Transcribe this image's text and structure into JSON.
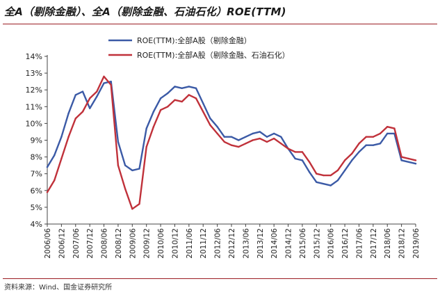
{
  "title": "全A（剔除金融）、全A（剔除金融、石油石化）ROE(TTM)",
  "source": "资料来源：Wind、国金证券研究所",
  "colors": {
    "series1": "#3b5aa6",
    "series2": "#c0313a",
    "accent": "#9b1c22"
  },
  "chart_data": {
    "type": "line",
    "title": "全A（剔除金融）、全A（剔除金融、石油石化）ROE(TTM)",
    "xlabel": "",
    "ylabel": "",
    "ylim": [
      4,
      14
    ],
    "yticks": [
      "4%",
      "5%",
      "6%",
      "7%",
      "8%",
      "9%",
      "10%",
      "11%",
      "12%",
      "13%",
      "14%"
    ],
    "y_unit": "%",
    "grid": false,
    "legend_position": "top",
    "x_tick_labels": [
      "2006/06",
      "2006/12",
      "2007/06",
      "2007/12",
      "2008/06",
      "2008/12",
      "2009/06",
      "2009/12",
      "2010/06",
      "2010/12",
      "2011/06",
      "2011/12",
      "2012/06",
      "2012/12",
      "2013/06",
      "2013/12",
      "2014/06",
      "2014/12",
      "2015/06",
      "2015/12",
      "2016/06",
      "2016/12",
      "2017/06",
      "2017/12",
      "2018/06",
      "2018/12",
      "2019/06"
    ],
    "x": [
      "2006/06",
      "2006/09",
      "2006/12",
      "2007/03",
      "2007/06",
      "2007/09",
      "2007/12",
      "2008/03",
      "2008/06",
      "2008/09",
      "2008/12",
      "2009/03",
      "2009/06",
      "2009/09",
      "2009/12",
      "2010/03",
      "2010/06",
      "2010/09",
      "2010/12",
      "2011/03",
      "2011/06",
      "2011/09",
      "2011/12",
      "2012/03",
      "2012/06",
      "2012/09",
      "2012/12",
      "2013/03",
      "2013/06",
      "2013/09",
      "2013/12",
      "2014/03",
      "2014/06",
      "2014/09",
      "2014/12",
      "2015/03",
      "2015/06",
      "2015/09",
      "2015/12",
      "2016/03",
      "2016/06",
      "2016/09",
      "2016/12",
      "2017/03",
      "2017/06",
      "2017/09",
      "2017/12",
      "2018/03",
      "2018/06",
      "2018/09",
      "2018/12",
      "2019/03",
      "2019/06"
    ],
    "series": [
      {
        "name": "ROE(TTM):全部A股（剔除金融）",
        "color": "#3b5aa6",
        "values": [
          7.4,
          8.1,
          9.2,
          10.6,
          11.7,
          11.9,
          10.9,
          11.6,
          12.4,
          12.5,
          8.9,
          7.5,
          7.2,
          7.3,
          9.7,
          10.7,
          11.5,
          11.8,
          12.2,
          12.1,
          12.2,
          12.1,
          11.2,
          10.3,
          9.8,
          9.2,
          9.2,
          9.0,
          9.2,
          9.4,
          9.5,
          9.2,
          9.4,
          9.2,
          8.5,
          7.9,
          7.8,
          7.1,
          6.5,
          6.4,
          6.3,
          6.6,
          7.2,
          7.8,
          8.3,
          8.7,
          8.7,
          8.8,
          9.4,
          9.4,
          7.8,
          7.7,
          7.6
        ]
      },
      {
        "name": "ROE(TTM):全部A股（剔除金融、石油石化）",
        "color": "#c0313a",
        "values": [
          5.9,
          6.6,
          7.9,
          9.2,
          10.3,
          10.7,
          11.5,
          11.9,
          12.8,
          12.3,
          7.5,
          6.1,
          4.9,
          5.2,
          8.6,
          9.8,
          10.8,
          11.0,
          11.4,
          11.3,
          11.7,
          11.5,
          10.7,
          9.9,
          9.4,
          8.9,
          8.7,
          8.6,
          8.8,
          9.0,
          9.1,
          8.9,
          9.1,
          8.8,
          8.5,
          8.3,
          8.3,
          7.7,
          7.0,
          6.9,
          6.9,
          7.2,
          7.8,
          8.2,
          8.8,
          9.2,
          9.2,
          9.4,
          9.8,
          9.7,
          8.0,
          7.9,
          7.8
        ]
      }
    ]
  }
}
